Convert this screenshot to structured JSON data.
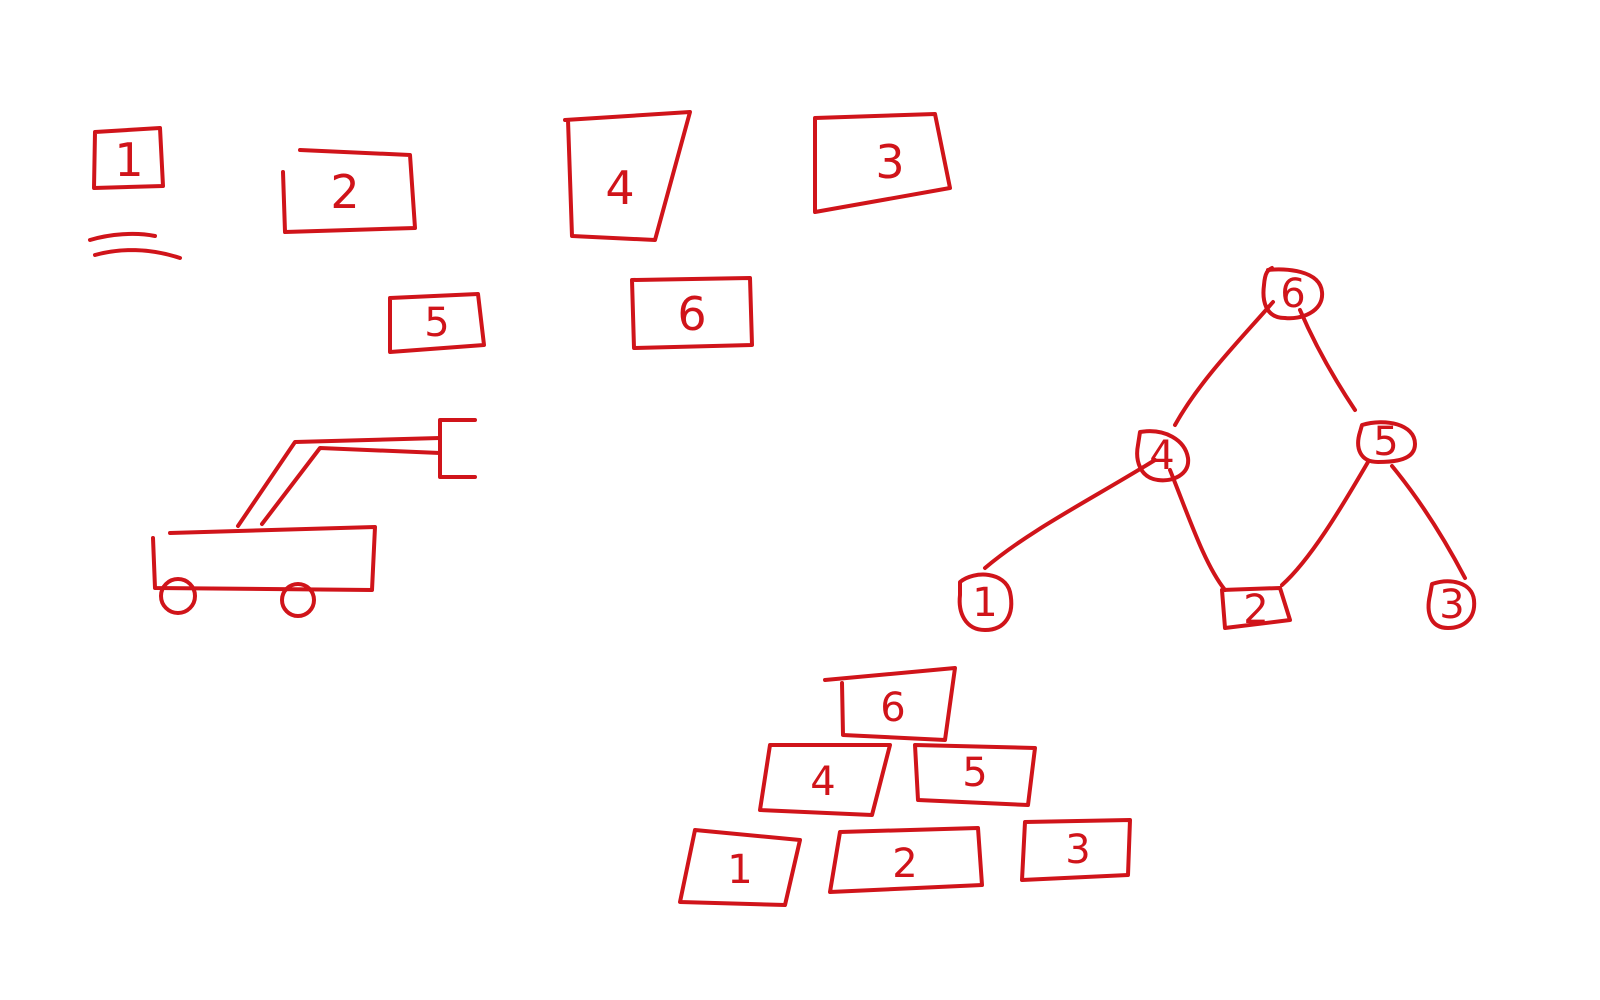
{
  "ink_color": "#d0141a",
  "loose_boxes": [
    {
      "label": "1"
    },
    {
      "label": "2"
    },
    {
      "label": "4"
    },
    {
      "label": "3"
    },
    {
      "label": "5"
    },
    {
      "label": "6"
    }
  ],
  "tree_nodes": [
    {
      "label": "6"
    },
    {
      "label": "4"
    },
    {
      "label": "5"
    },
    {
      "label": "1"
    },
    {
      "label": "2"
    },
    {
      "label": "3"
    }
  ],
  "pyramid_blocks": [
    {
      "label": "6"
    },
    {
      "label": "4"
    },
    {
      "label": "5"
    },
    {
      "label": "1"
    },
    {
      "label": "2"
    },
    {
      "label": "3"
    }
  ]
}
